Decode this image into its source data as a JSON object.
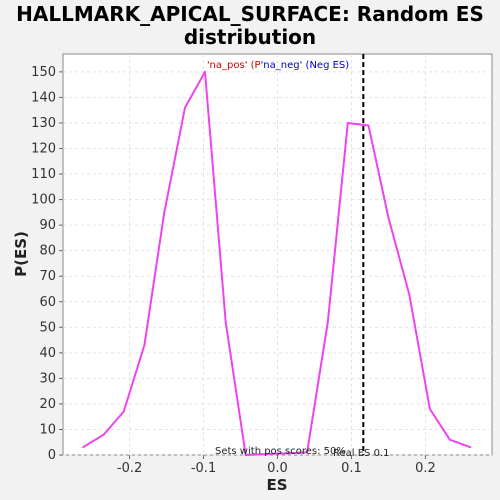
{
  "chart_data": {
    "type": "line",
    "title_line1": "HALLMARK_APICAL_SURFACE: Random ES",
    "title_line2": "distribution",
    "xlabel": "ES",
    "ylabel": "P(ES)",
    "xlim": [
      -0.29,
      0.29
    ],
    "ylim": [
      0,
      157
    ],
    "xticks": [
      -0.2,
      -0.1,
      0.0,
      0.1,
      0.2
    ],
    "xtick_labels": [
      "-0.2",
      "-0.1",
      "0.0",
      "0.1",
      "0.2"
    ],
    "yticks": [
      0,
      10,
      20,
      30,
      40,
      50,
      60,
      70,
      80,
      90,
      100,
      110,
      120,
      130,
      140,
      150
    ],
    "ytick_labels": [
      "0",
      "10",
      "20",
      "30",
      "40",
      "50",
      "60",
      "70",
      "80",
      "90",
      "100",
      "110",
      "120",
      "130",
      "140",
      "150"
    ],
    "grid": true,
    "series": [
      {
        "color": "#ee44ee",
        "x": [
          -0.263,
          -0.235,
          -0.208,
          -0.18,
          -0.153,
          -0.125,
          -0.098,
          -0.07,
          -0.043,
          0.04,
          0.068,
          0.095,
          0.123,
          0.15,
          0.178,
          0.206,
          0.233,
          0.261
        ],
        "y": [
          3,
          8,
          17,
          43,
          95,
          136,
          150,
          52,
          0,
          1,
          52,
          130,
          129,
          93,
          63,
          18,
          6,
          3
        ]
      }
    ],
    "real_es": 0.116,
    "real_es_label": "Real ES 0.1",
    "legend": {
      "pos_text": "'na_pos' (P",
      "neg_text": "'na_neg' (Neg ES)",
      "pos_color": "#cc0000",
      "neg_color": "#0000cc",
      "placement": "top-center"
    },
    "footnote": "Sets with pos scores: 50%"
  }
}
